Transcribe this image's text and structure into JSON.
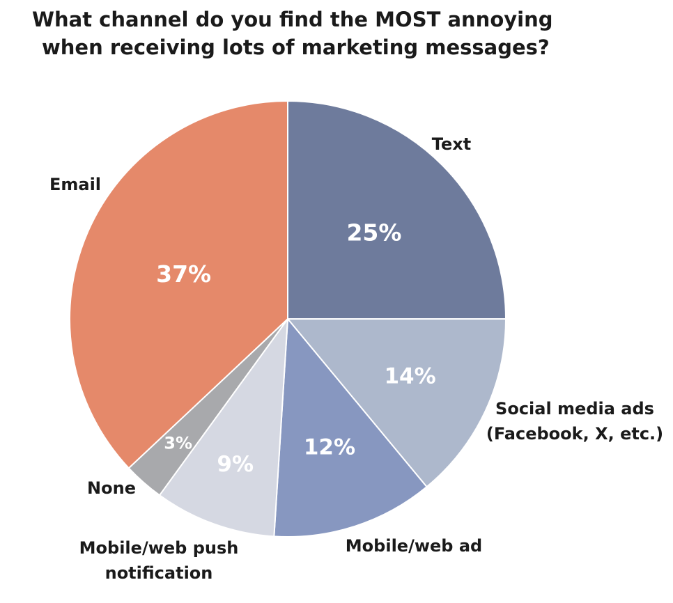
{
  "title_lines": [
    "What channel do you find the MOST annoying",
    "when receiving lots of marketing messages?"
  ],
  "chart_data": {
    "type": "pie",
    "title": "What channel do you find the MOST annoying when receiving lots of marketing messages?",
    "start_angle": "12 o'clock",
    "direction": "clockwise",
    "slices": [
      {
        "key": "text",
        "label_lines": [
          "Text"
        ],
        "value": 25,
        "value_label": "25%",
        "color": "#6e7b9c"
      },
      {
        "key": "social",
        "label_lines": [
          "Social media ads",
          "(Facebook, X, etc.)"
        ],
        "value": 14,
        "value_label": "14%",
        "color": "#adb8cc"
      },
      {
        "key": "mobile-ad",
        "label_lines": [
          "Mobile/web ad"
        ],
        "value": 12,
        "value_label": "12%",
        "color": "#8797c0"
      },
      {
        "key": "push",
        "label_lines": [
          "Mobile/web push",
          "notification"
        ],
        "value": 9,
        "value_label": "9%",
        "color": "#d5d8e2"
      },
      {
        "key": "none",
        "label_lines": [
          "None"
        ],
        "value": 3,
        "value_label": "3%",
        "color": "#a8a9ac"
      },
      {
        "key": "email",
        "label_lines": [
          "Email"
        ],
        "value": 37,
        "value_label": "37%",
        "color": "#e5896a"
      }
    ]
  }
}
